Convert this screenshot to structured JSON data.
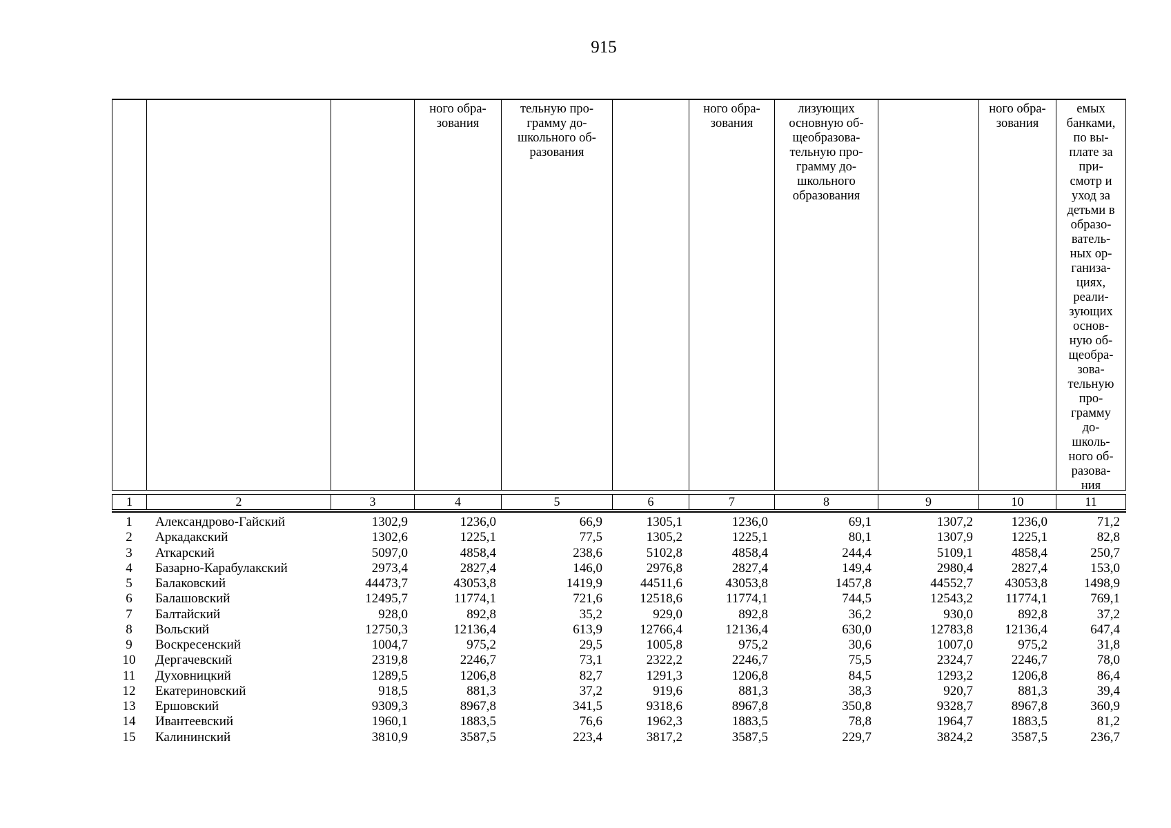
{
  "page": {
    "number": "915"
  },
  "table": {
    "header_cells": [
      "",
      "",
      "",
      "ного обра-\nзования",
      "тельную про-\nграмму до-\nшкольного об-\nразования",
      "",
      "ного обра-\nзования",
      "лизующих\nосновную об-\nщеобразова-\nтельную про-\nграмму до-\nшкольного\nобразования",
      "",
      "ного обра-\nзования",
      "емых\nбанками,\nпо вы-\nплате за\nпри-\nсмотр и\nуход за\nдетьми в\nобразо-\nватель-\nных ор-\nганиза-\nциях,\nреали-\nзующих\nоснов-\nную об-\nщеобра-\nзова-\nтельную\nпро-\nграмму\nдо-\nшколь-\nного об-\nразова-\nния"
    ],
    "number_row": [
      "1",
      "2",
      "3",
      "4",
      "5",
      "6",
      "7",
      "8",
      "9",
      "10",
      "11"
    ],
    "rows": [
      [
        "1",
        "Александрово-Гайский",
        "1302,9",
        "1236,0",
        "66,9",
        "1305,1",
        "1236,0",
        "69,1",
        "1307,2",
        "1236,0",
        "71,2"
      ],
      [
        "2",
        "Аркадакский",
        "1302,6",
        "1225,1",
        "77,5",
        "1305,2",
        "1225,1",
        "80,1",
        "1307,9",
        "1225,1",
        "82,8"
      ],
      [
        "3",
        "Аткарский",
        "5097,0",
        "4858,4",
        "238,6",
        "5102,8",
        "4858,4",
        "244,4",
        "5109,1",
        "4858,4",
        "250,7"
      ],
      [
        "4",
        "Базарно-Карабулакский",
        "2973,4",
        "2827,4",
        "146,0",
        "2976,8",
        "2827,4",
        "149,4",
        "2980,4",
        "2827,4",
        "153,0"
      ],
      [
        "5",
        "Балаковский",
        "44473,7",
        "43053,8",
        "1419,9",
        "44511,6",
        "43053,8",
        "1457,8",
        "44552,7",
        "43053,8",
        "1498,9"
      ],
      [
        "6",
        "Балашовский",
        "12495,7",
        "11774,1",
        "721,6",
        "12518,6",
        "11774,1",
        "744,5",
        "12543,2",
        "11774,1",
        "769,1"
      ],
      [
        "7",
        "Балтайский",
        "928,0",
        "892,8",
        "35,2",
        "929,0",
        "892,8",
        "36,2",
        "930,0",
        "892,8",
        "37,2"
      ],
      [
        "8",
        "Вольский",
        "12750,3",
        "12136,4",
        "613,9",
        "12766,4",
        "12136,4",
        "630,0",
        "12783,8",
        "12136,4",
        "647,4"
      ],
      [
        "9",
        "Воскресенский",
        "1004,7",
        "975,2",
        "29,5",
        "1005,8",
        "975,2",
        "30,6",
        "1007,0",
        "975,2",
        "31,8"
      ],
      [
        "10",
        "Дергачевский",
        "2319,8",
        "2246,7",
        "73,1",
        "2322,2",
        "2246,7",
        "75,5",
        "2324,7",
        "2246,7",
        "78,0"
      ],
      [
        "11",
        "Духовницкий",
        "1289,5",
        "1206,8",
        "82,7",
        "1291,3",
        "1206,8",
        "84,5",
        "1293,2",
        "1206,8",
        "86,4"
      ],
      [
        "12",
        "Екатериновский",
        "918,5",
        "881,3",
        "37,2",
        "919,6",
        "881,3",
        "38,3",
        "920,7",
        "881,3",
        "39,4"
      ],
      [
        "13",
        "Ершовский",
        "9309,3",
        "8967,8",
        "341,5",
        "9318,6",
        "8967,8",
        "350,8",
        "9328,7",
        "8967,8",
        "360,9"
      ],
      [
        "14",
        "Ивантеевский",
        "1960,1",
        "1883,5",
        "76,6",
        "1962,3",
        "1883,5",
        "78,8",
        "1964,7",
        "1883,5",
        "81,2"
      ],
      [
        "15",
        "Калининский",
        "3810,9",
        "3587,5",
        "223,4",
        "3817,2",
        "3587,5",
        "229,7",
        "3824,2",
        "3587,5",
        "236,7"
      ]
    ]
  }
}
